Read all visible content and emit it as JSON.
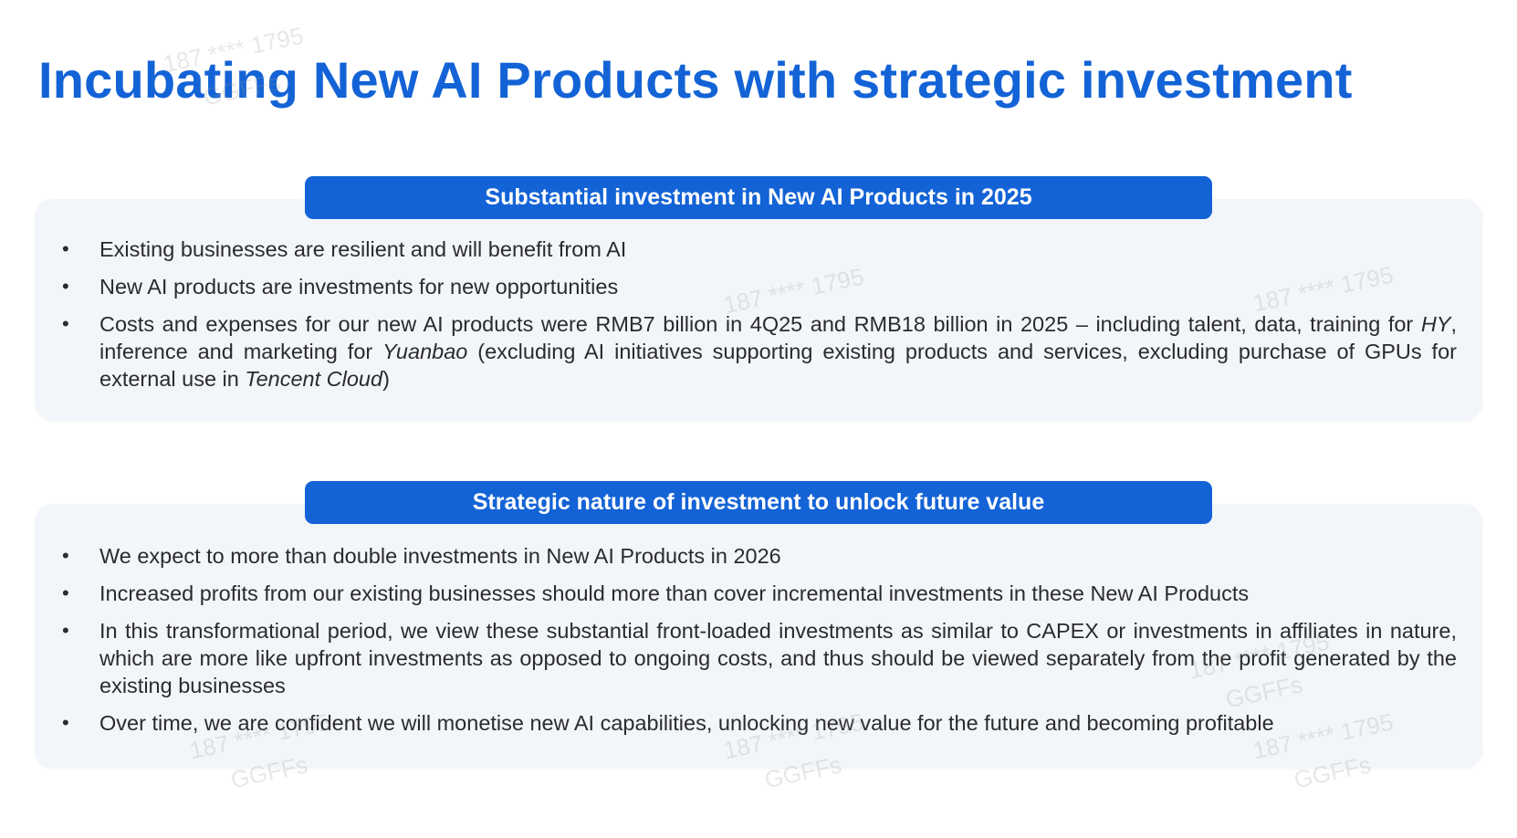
{
  "slide": {
    "title": "Incubating New AI Products with strategic investment"
  },
  "section1": {
    "heading": "Substantial investment in New AI Products in 2025",
    "bullet_glyph": "•",
    "bullets": [
      {
        "text": "Existing businesses are resilient and will benefit from AI"
      },
      {
        "text": "New AI products are investments for new opportunities"
      },
      {
        "part1": "Costs and expenses for our new AI products were RMB7 billion in 4Q25 and RMB18 billion in 2025 – including talent, data, training for ",
        "hy": "HY",
        "part2": ", inference and marketing for ",
        "yuanbao": "Yuanbao",
        "part3": " (excluding AI initiatives supporting existing products and services, excluding purchase of GPUs for external use in ",
        "tencent_cloud": "Tencent Cloud",
        "part4": ")"
      }
    ]
  },
  "section2": {
    "heading": "Strategic nature of investment to unlock future value",
    "bullets": [
      {
        "text": "We expect to more than double investments in New AI Products in 2026"
      },
      {
        "text": "Increased profits from our existing businesses should more than cover incremental investments in these New AI Products"
      },
      {
        "text": "In this transformational period, we view these substantial front-loaded investments as similar to CAPEX or investments in affiliates in nature, which are more like upfront investments as opposed to ongoing costs, and thus should be viewed separately from the profit generated by the existing businesses"
      },
      {
        "text": "Over time, we are confident we will monetise new AI capabilities, unlocking new value for the future and becoming profitable"
      }
    ]
  },
  "watermark": {
    "number": "187 **** 1795",
    "tag": "GGFFs"
  }
}
